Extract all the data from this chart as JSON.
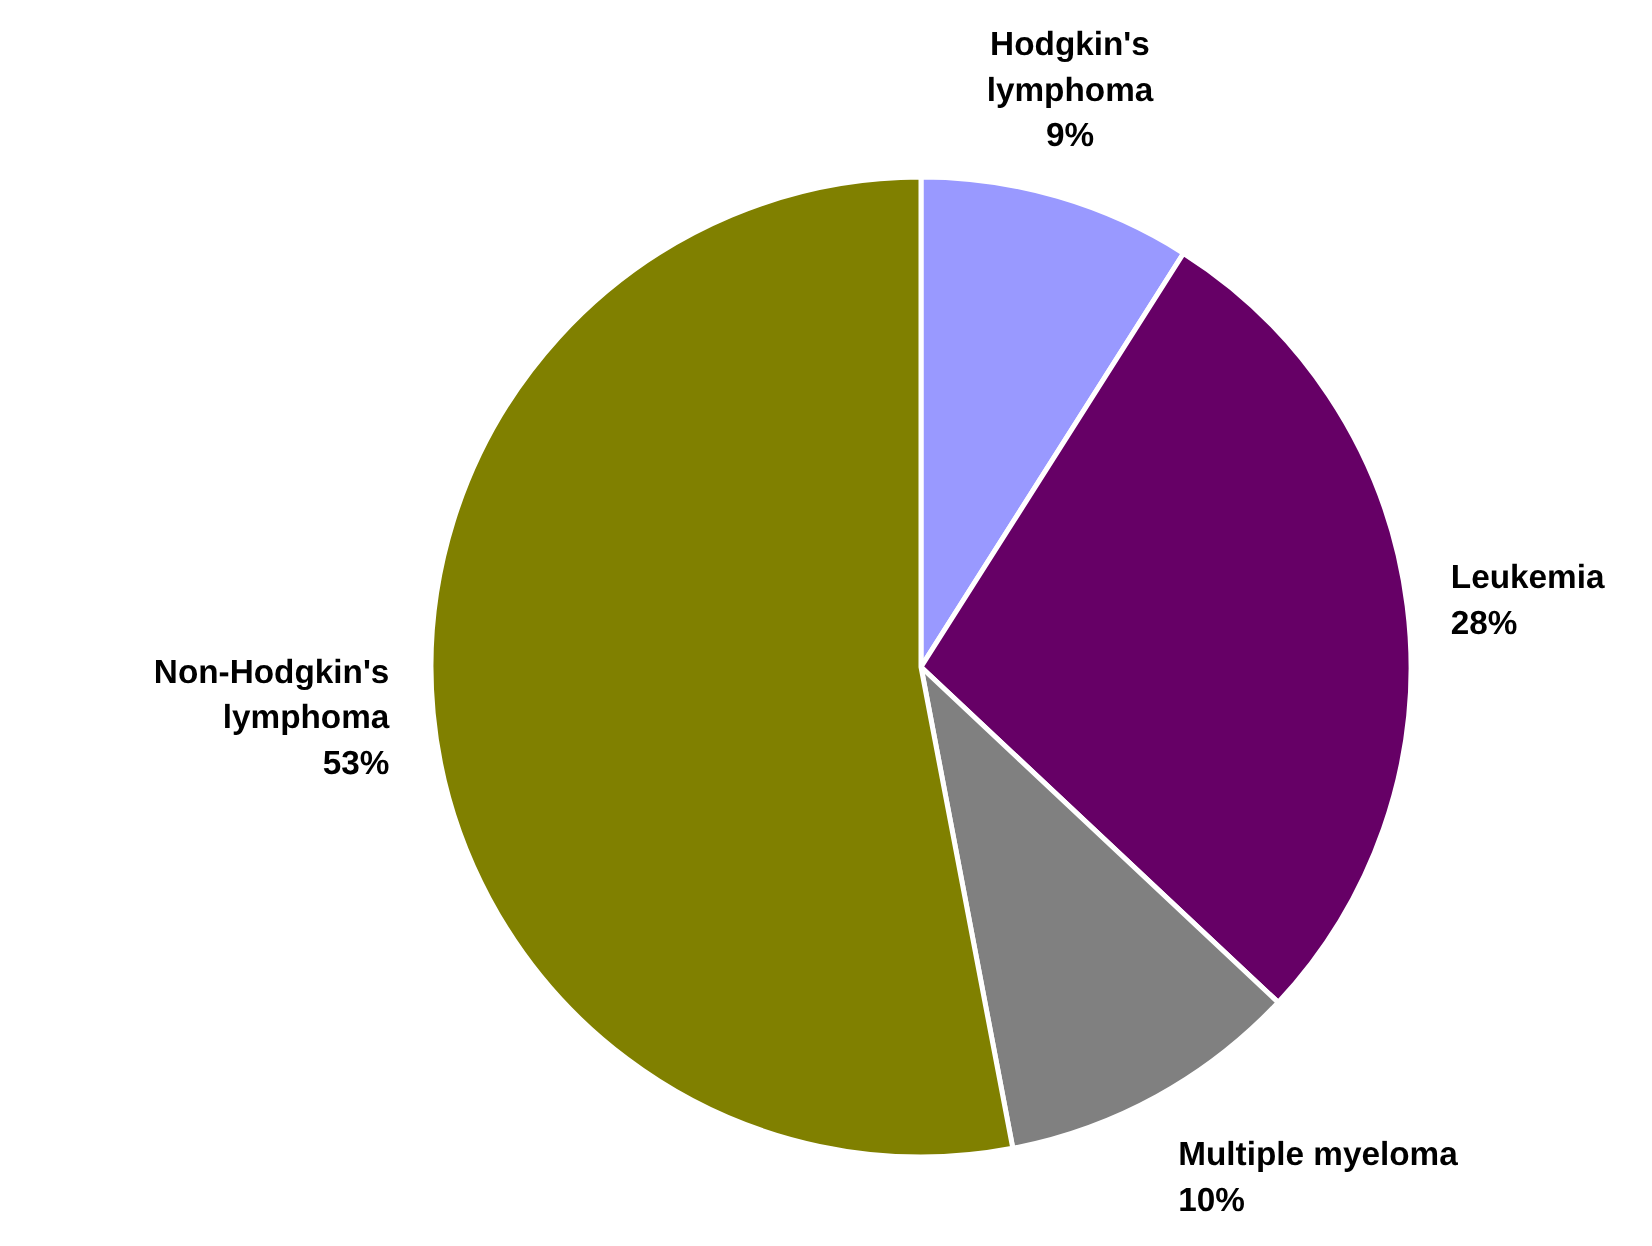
{
  "chart_data": {
    "type": "pie",
    "categories": [
      "Hodgkin's lymphoma",
      "Leukemia",
      "Multiple myeloma",
      "Non-Hodgkin's lymphoma"
    ],
    "values": [
      9,
      28,
      10,
      53
    ],
    "value_labels": [
      "9%",
      "28%",
      "10%",
      "53%"
    ],
    "colors": [
      "#9999ff",
      "#660066",
      "#808080",
      "#808000"
    ]
  }
}
